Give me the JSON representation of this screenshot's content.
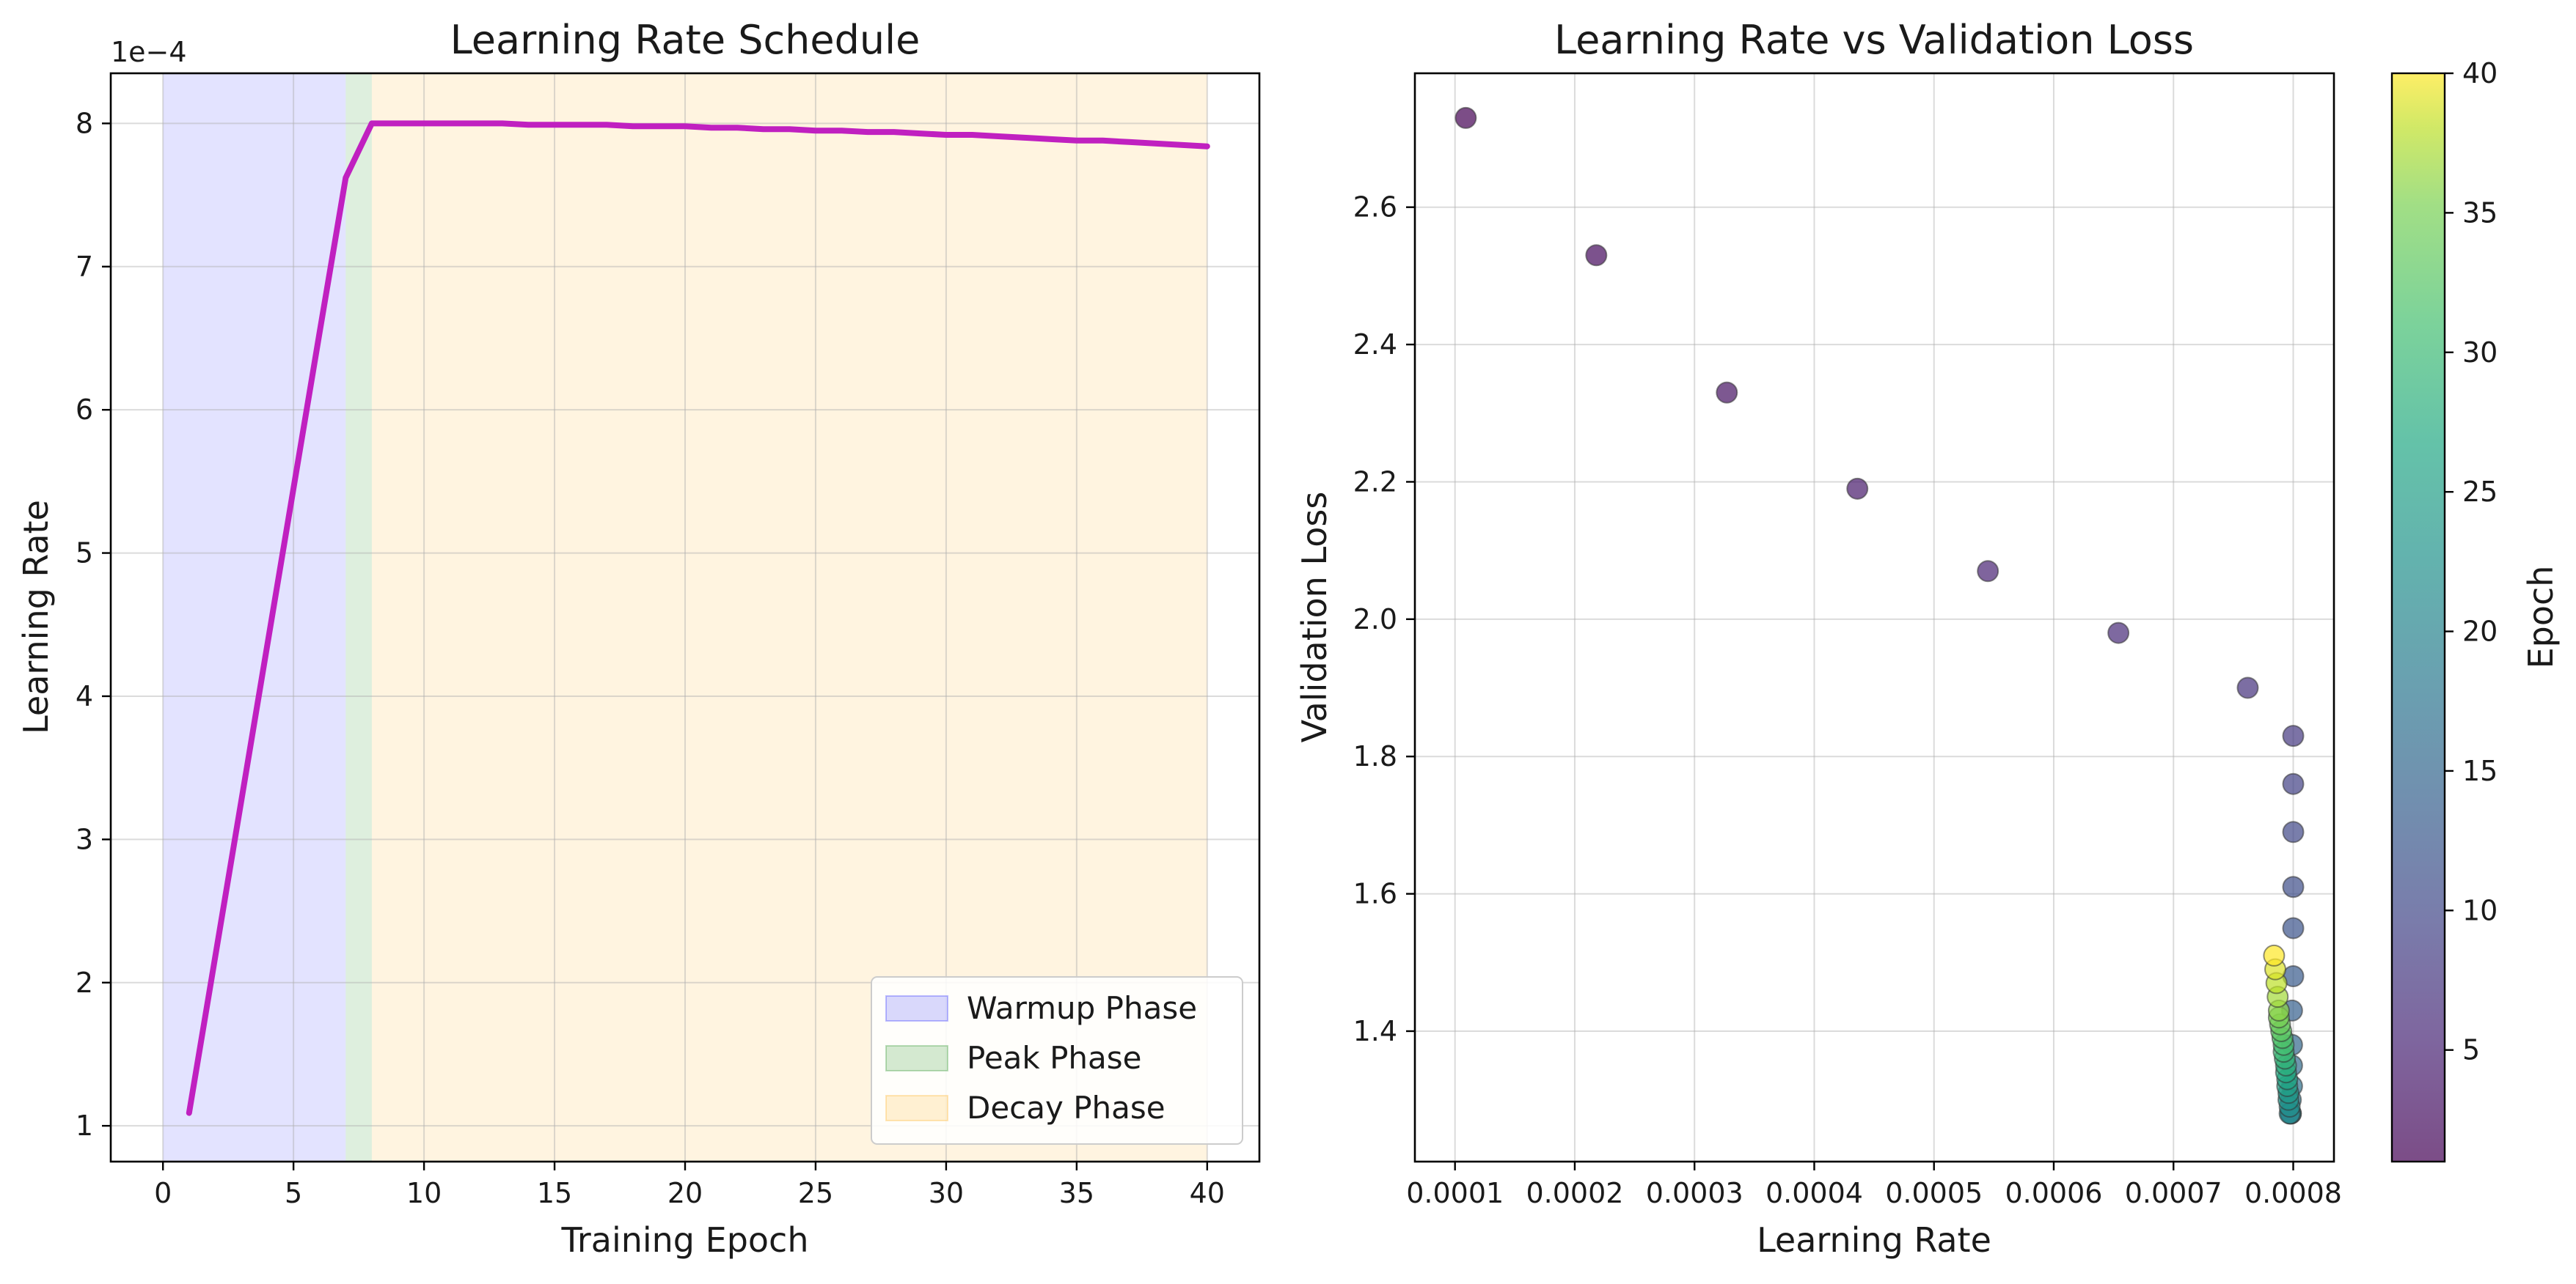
{
  "chart_data": [
    {
      "type": "line",
      "title": "Learning Rate Schedule",
      "xlabel": "Training Epoch",
      "ylabel": "Learning Rate",
      "offset_text": "1e−4",
      "xlim": [
        -2,
        42
      ],
      "ylim": [
        0.75,
        8.35
      ],
      "xticks": [
        0,
        5,
        10,
        15,
        20,
        25,
        30,
        35,
        40
      ],
      "yticks": [
        1,
        2,
        3,
        4,
        5,
        6,
        7,
        8
      ],
      "ytick_labels": [
        "1",
        "2",
        "3",
        "4",
        "5",
        "6",
        "7",
        "8"
      ],
      "grid": true,
      "legend_position": "lower-right",
      "phases": [
        {
          "name": "Warmup Phase",
          "start": 0,
          "end": 7,
          "color": "#0000ff",
          "alpha": 0.11
        },
        {
          "name": "Peak Phase",
          "start": 7,
          "end": 8,
          "color": "#008000",
          "alpha": 0.13
        },
        {
          "name": "Decay Phase",
          "start": 8,
          "end": 40,
          "color": "#ffa500",
          "alpha": 0.12
        }
      ],
      "series": [
        {
          "color": "#c020c0",
          "x": [
            1,
            2,
            3,
            4,
            5,
            6,
            7,
            8,
            9,
            10,
            11,
            12,
            13,
            14,
            15,
            16,
            17,
            18,
            19,
            20,
            21,
            22,
            23,
            24,
            25,
            26,
            27,
            28,
            29,
            30,
            31,
            32,
            33,
            34,
            35,
            36,
            37,
            38,
            39,
            40
          ],
          "y": [
            1.09,
            2.18,
            3.27,
            4.36,
            5.45,
            6.54,
            7.62,
            8.0,
            8.0,
            8.0,
            8.0,
            8.0,
            8.0,
            7.99,
            7.99,
            7.99,
            7.99,
            7.98,
            7.98,
            7.98,
            7.97,
            7.97,
            7.96,
            7.96,
            7.95,
            7.95,
            7.94,
            7.94,
            7.93,
            7.92,
            7.92,
            7.91,
            7.9,
            7.89,
            7.88,
            7.88,
            7.87,
            7.86,
            7.85,
            7.84
          ]
        }
      ]
    },
    {
      "type": "scatter",
      "title": "Learning Rate vs Validation Loss",
      "xlabel": "Learning Rate",
      "ylabel": "Validation Loss",
      "xlim": [
        6.65e-05,
        0.000834
      ],
      "ylim": [
        1.21,
        2.795
      ],
      "xticks": [
        0.0001,
        0.0002,
        0.0003,
        0.0004,
        0.0005,
        0.0006,
        0.0007,
        0.0008
      ],
      "xtick_labels": [
        "0.0001",
        "0.0002",
        "0.0003",
        "0.0004",
        "0.0005",
        "0.0006",
        "0.0007",
        "0.0008"
      ],
      "yticks": [
        1.4,
        1.6,
        1.8,
        2.0,
        2.2,
        2.4,
        2.6
      ],
      "ytick_labels": [
        "1.4",
        "1.6",
        "1.8",
        "2.0",
        "2.2",
        "2.4",
        "2.6"
      ],
      "grid": true,
      "colorbar": {
        "label": "Epoch",
        "min": 1,
        "max": 40,
        "ticks": [
          5,
          10,
          15,
          20,
          25,
          30,
          35,
          40
        ],
        "colormap": "viridis",
        "alpha": 0.7
      },
      "points": {
        "x": [
          0.000109,
          0.000218,
          0.000327,
          0.000436,
          0.000545,
          0.000654,
          0.000762,
          0.0008,
          0.0008,
          0.0008,
          0.0008,
          0.0008,
          0.0008,
          0.000799,
          0.000799,
          0.000799,
          0.000799,
          0.000798,
          0.000798,
          0.000798,
          0.000797,
          0.000797,
          0.000796,
          0.000796,
          0.000795,
          0.000795,
          0.000794,
          0.000794,
          0.000793,
          0.000792,
          0.000792,
          0.000791,
          0.00079,
          0.000789,
          0.000788,
          0.000788,
          0.000787,
          0.000786,
          0.000785,
          0.000784
        ],
        "y": [
          2.73,
          2.53,
          2.33,
          2.19,
          2.07,
          1.98,
          1.9,
          1.83,
          1.76,
          1.69,
          1.61,
          1.55,
          1.48,
          1.43,
          1.38,
          1.35,
          1.32,
          1.3,
          1.28,
          1.28,
          1.28,
          1.29,
          1.3,
          1.31,
          1.32,
          1.33,
          1.34,
          1.35,
          1.36,
          1.37,
          1.38,
          1.39,
          1.4,
          1.41,
          1.42,
          1.43,
          1.45,
          1.47,
          1.49,
          1.51
        ],
        "epoch": [
          1,
          2,
          3,
          4,
          5,
          6,
          7,
          8,
          9,
          10,
          11,
          12,
          13,
          14,
          15,
          16,
          17,
          18,
          19,
          20,
          21,
          22,
          23,
          24,
          25,
          26,
          27,
          28,
          29,
          30,
          31,
          32,
          33,
          34,
          35,
          36,
          37,
          38,
          39,
          40
        ]
      }
    }
  ]
}
